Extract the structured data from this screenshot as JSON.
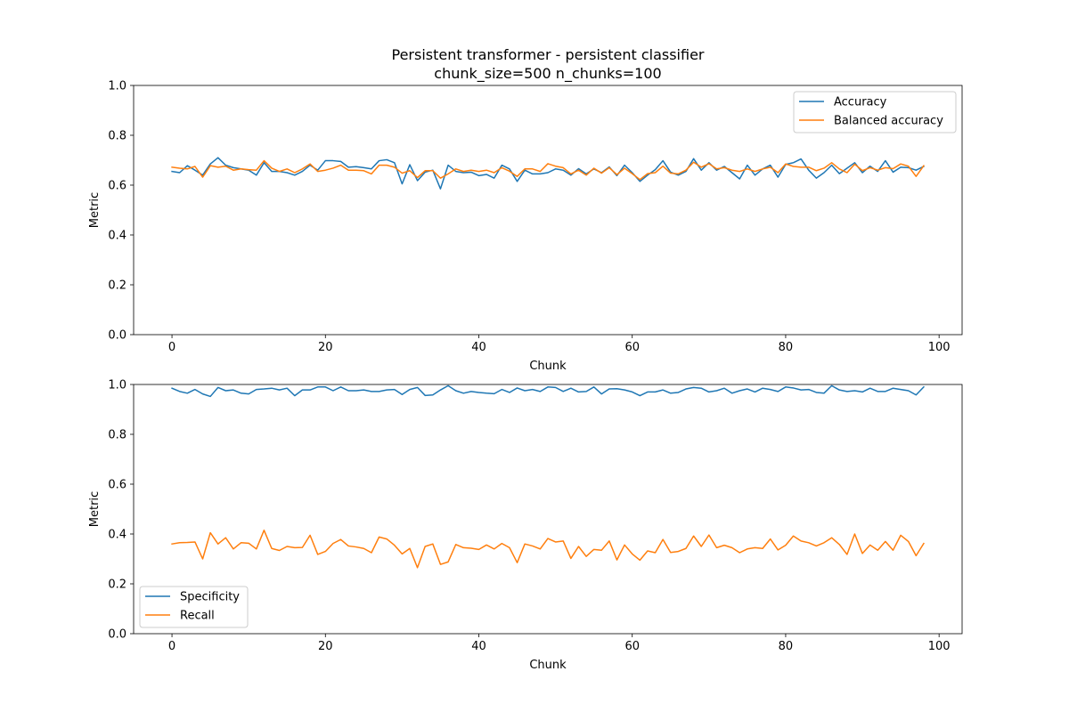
{
  "figure": {
    "title_line1": "Persistent transformer - persistent classifier",
    "title_line2": "chunk_size=500 n_chunks=100"
  },
  "chart_data": [
    {
      "type": "line",
      "xlabel": "Chunk",
      "ylabel": "Metric",
      "xlim": [
        -5,
        103
      ],
      "ylim": [
        0,
        1
      ],
      "xticks": [
        0,
        20,
        40,
        60,
        80,
        100
      ],
      "yticks": [
        0.0,
        0.2,
        0.4,
        0.6,
        0.8,
        1.0
      ],
      "legend": "top-right",
      "grid": false,
      "series": [
        {
          "name": "Accuracy",
          "color": "#1f77b4",
          "values": [
            0.655,
            0.65,
            0.678,
            0.66,
            0.64,
            0.685,
            0.71,
            0.68,
            0.67,
            0.665,
            0.66,
            0.64,
            0.69,
            0.655,
            0.655,
            0.65,
            0.64,
            0.655,
            0.68,
            0.66,
            0.698,
            0.698,
            0.695,
            0.672,
            0.674,
            0.67,
            0.665,
            0.698,
            0.702,
            0.69,
            0.605,
            0.682,
            0.618,
            0.652,
            0.66,
            0.585,
            0.68,
            0.655,
            0.65,
            0.652,
            0.638,
            0.643,
            0.628,
            0.68,
            0.665,
            0.615,
            0.66,
            0.645,
            0.645,
            0.65,
            0.665,
            0.66,
            0.64,
            0.666,
            0.645,
            0.665,
            0.65,
            0.673,
            0.638,
            0.68,
            0.65,
            0.615,
            0.64,
            0.662,
            0.698,
            0.652,
            0.64,
            0.655,
            0.706,
            0.66,
            0.69,
            0.66,
            0.675,
            0.65,
            0.625,
            0.68,
            0.64,
            0.665,
            0.68,
            0.632,
            0.683,
            0.69,
            0.705,
            0.66,
            0.628,
            0.65,
            0.68,
            0.646,
            0.668,
            0.69,
            0.65,
            0.676,
            0.655,
            0.698,
            0.652,
            0.672,
            0.67,
            0.66,
            0.675
          ]
        },
        {
          "name": "Balanced accuracy",
          "color": "#ff7f0e",
          "values": [
            0.672,
            0.668,
            0.665,
            0.675,
            0.632,
            0.678,
            0.672,
            0.676,
            0.66,
            0.665,
            0.662,
            0.66,
            0.698,
            0.668,
            0.655,
            0.665,
            0.65,
            0.665,
            0.685,
            0.655,
            0.66,
            0.668,
            0.68,
            0.66,
            0.66,
            0.658,
            0.645,
            0.68,
            0.68,
            0.672,
            0.648,
            0.658,
            0.63,
            0.658,
            0.658,
            0.628,
            0.645,
            0.665,
            0.655,
            0.66,
            0.655,
            0.66,
            0.65,
            0.67,
            0.656,
            0.635,
            0.665,
            0.665,
            0.655,
            0.686,
            0.676,
            0.67,
            0.645,
            0.66,
            0.64,
            0.668,
            0.648,
            0.67,
            0.642,
            0.668,
            0.646,
            0.622,
            0.646,
            0.65,
            0.676,
            0.648,
            0.645,
            0.66,
            0.692,
            0.672,
            0.686,
            0.665,
            0.67,
            0.66,
            0.655,
            0.665,
            0.655,
            0.665,
            0.672,
            0.65,
            0.685,
            0.675,
            0.672,
            0.672,
            0.658,
            0.668,
            0.69,
            0.665,
            0.65,
            0.684,
            0.658,
            0.67,
            0.66,
            0.67,
            0.666,
            0.685,
            0.676,
            0.635,
            0.678
          ]
        }
      ]
    },
    {
      "type": "line",
      "xlabel": "Chunk",
      "ylabel": "Metric",
      "xlim": [
        -5,
        103
      ],
      "ylim": [
        0,
        1
      ],
      "xticks": [
        0,
        20,
        40,
        60,
        80,
        100
      ],
      "yticks": [
        0.0,
        0.2,
        0.4,
        0.6,
        0.8,
        1.0
      ],
      "legend": "bottom-left",
      "grid": false,
      "series": [
        {
          "name": "Specificity",
          "color": "#1f77b4",
          "values": [
            0.985,
            0.972,
            0.965,
            0.98,
            0.962,
            0.952,
            0.988,
            0.975,
            0.978,
            0.965,
            0.962,
            0.98,
            0.982,
            0.985,
            0.978,
            0.985,
            0.955,
            0.978,
            0.978,
            0.99,
            0.99,
            0.975,
            0.99,
            0.975,
            0.975,
            0.978,
            0.972,
            0.972,
            0.978,
            0.98,
            0.96,
            0.98,
            0.988,
            0.956,
            0.958,
            0.978,
            0.995,
            0.975,
            0.965,
            0.972,
            0.968,
            0.965,
            0.963,
            0.98,
            0.968,
            0.986,
            0.975,
            0.98,
            0.972,
            0.99,
            0.988,
            0.972,
            0.985,
            0.97,
            0.972,
            0.99,
            0.962,
            0.982,
            0.983,
            0.978,
            0.97,
            0.955,
            0.97,
            0.97,
            0.978,
            0.965,
            0.968,
            0.982,
            0.988,
            0.985,
            0.97,
            0.975,
            0.985,
            0.965,
            0.975,
            0.982,
            0.97,
            0.985,
            0.98,
            0.972,
            0.99,
            0.986,
            0.978,
            0.98,
            0.968,
            0.965,
            0.995,
            0.978,
            0.972,
            0.975,
            0.97,
            0.985,
            0.972,
            0.972,
            0.985,
            0.98,
            0.975,
            0.958,
            0.99
          ]
        },
        {
          "name": "Recall",
          "color": "#ff7f0e",
          "values": [
            0.36,
            0.365,
            0.366,
            0.368,
            0.3,
            0.405,
            0.36,
            0.385,
            0.34,
            0.365,
            0.363,
            0.34,
            0.415,
            0.342,
            0.334,
            0.35,
            0.345,
            0.346,
            0.395,
            0.318,
            0.33,
            0.362,
            0.378,
            0.352,
            0.348,
            0.342,
            0.325,
            0.388,
            0.38,
            0.355,
            0.32,
            0.342,
            0.265,
            0.35,
            0.36,
            0.278,
            0.288,
            0.358,
            0.345,
            0.343,
            0.338,
            0.356,
            0.34,
            0.362,
            0.345,
            0.285,
            0.36,
            0.352,
            0.34,
            0.382,
            0.368,
            0.372,
            0.302,
            0.35,
            0.31,
            0.338,
            0.335,
            0.372,
            0.296,
            0.356,
            0.32,
            0.295,
            0.332,
            0.325,
            0.378,
            0.326,
            0.33,
            0.342,
            0.392,
            0.35,
            0.396,
            0.345,
            0.355,
            0.345,
            0.325,
            0.34,
            0.345,
            0.342,
            0.38,
            0.336,
            0.355,
            0.392,
            0.372,
            0.365,
            0.352,
            0.365,
            0.385,
            0.358,
            0.318,
            0.4,
            0.322,
            0.356,
            0.335,
            0.37,
            0.335,
            0.395,
            0.37,
            0.313,
            0.362
          ]
        }
      ]
    }
  ]
}
